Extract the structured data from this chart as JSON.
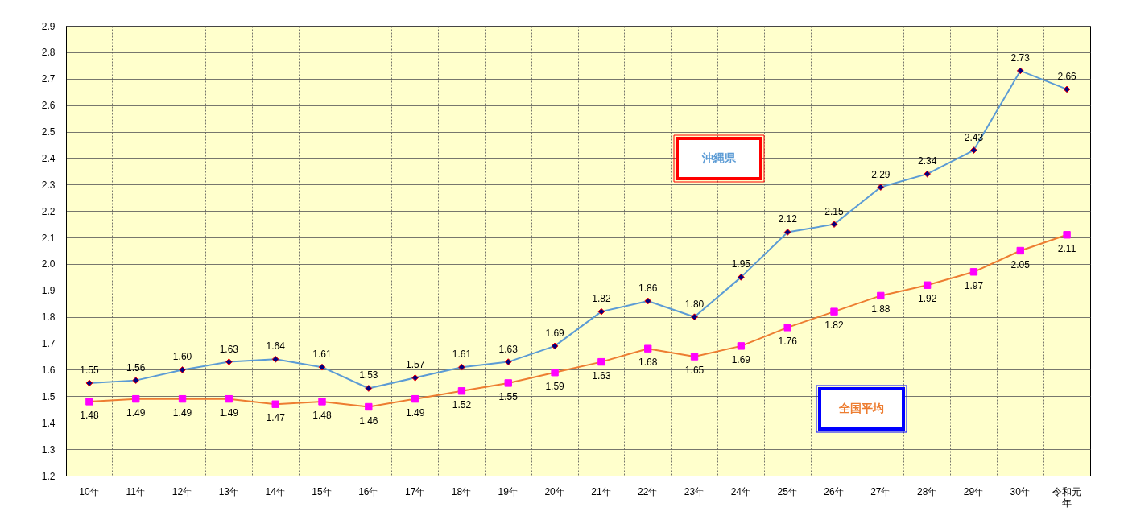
{
  "chart_data": {
    "type": "line",
    "categories": [
      "10年",
      "11年",
      "12年",
      "13年",
      "14年",
      "15年",
      "16年",
      "17年",
      "18年",
      "19年",
      "20年",
      "21年",
      "22年",
      "23年",
      "24年",
      "25年",
      "26年",
      "27年",
      "28年",
      "29年",
      "30年",
      "令和元年"
    ],
    "series": [
      {
        "name": "沖縄県",
        "color": "#5b9bd5",
        "marker": "diamond",
        "values": [
          1.55,
          1.56,
          1.6,
          1.63,
          1.64,
          1.61,
          1.53,
          1.57,
          1.61,
          1.63,
          1.69,
          1.82,
          1.86,
          1.8,
          1.95,
          2.12,
          2.15,
          2.29,
          2.34,
          2.43,
          2.73,
          2.66
        ],
        "value_labels": [
          "1.55",
          "1.56",
          "1.60",
          "1.63",
          "1.64",
          "1.61",
          "1.53",
          "1.57",
          "1.61",
          "1.63",
          "1.69",
          "1.82",
          "1.86",
          "1.80",
          "1.95",
          "2.12",
          "2.15",
          "2.29",
          "2.34",
          "2.43",
          "2.73",
          "2.66"
        ]
      },
      {
        "name": "全国平均",
        "color": "#ed7d31",
        "marker": "square",
        "values": [
          1.48,
          1.49,
          1.49,
          1.49,
          1.47,
          1.48,
          1.46,
          1.49,
          1.52,
          1.55,
          1.59,
          1.63,
          1.68,
          1.65,
          1.69,
          1.76,
          1.82,
          1.88,
          1.92,
          1.97,
          2.05,
          2.11
        ],
        "value_labels": [
          "1.48",
          "1.49",
          "1.49",
          "1.49",
          "1.47",
          "1.48",
          "1.46",
          "1.49",
          "1.52",
          "1.55",
          "1.59",
          "1.63",
          "1.68",
          "1.65",
          "1.69",
          "1.76",
          "1.82",
          "1.88",
          "1.92",
          "1.97",
          "2.05",
          "2.11"
        ]
      }
    ],
    "ylim": [
      1.2,
      2.9
    ],
    "yticks": [
      1.2,
      1.3,
      1.4,
      1.5,
      1.6,
      1.7,
      1.8,
      1.9,
      {
        "value": 2.0,
        "label": "2.0"
      },
      2.1,
      2.2,
      2.3,
      2.4,
      2.5,
      2.6,
      2.7,
      2.8,
      2.9
    ],
    "grid": true,
    "line_style": "solid"
  }
}
